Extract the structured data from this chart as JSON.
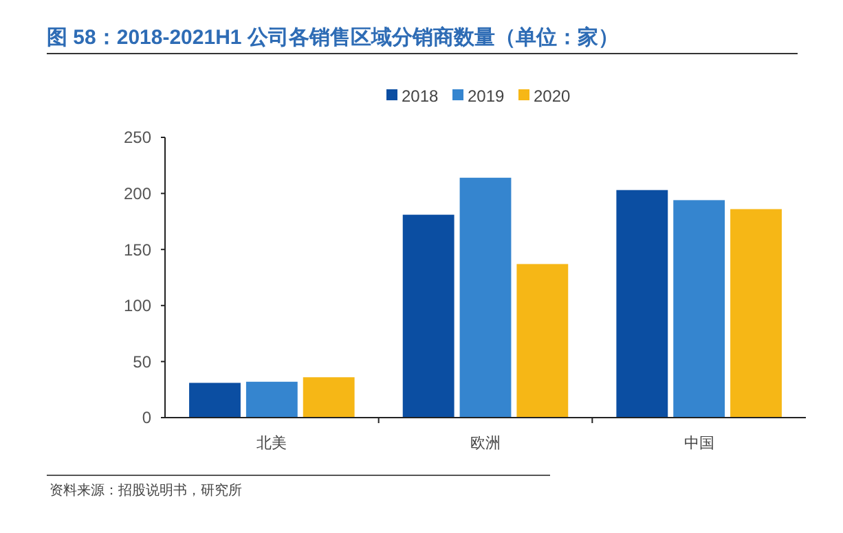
{
  "chart_data": {
    "type": "bar",
    "title": "图 58：2018-2021H1 公司各销售区域分销商数量（单位：家）",
    "categories": [
      "北美",
      "欧洲",
      "中国"
    ],
    "series": [
      {
        "name": "2018",
        "color": "#0b4ea2",
        "values": [
          31,
          181,
          203
        ]
      },
      {
        "name": "2019",
        "color": "#3585cf",
        "values": [
          32,
          214,
          194
        ]
      },
      {
        "name": "2020",
        "color": "#f6b716",
        "values": [
          36,
          137,
          186
        ]
      }
    ],
    "ylim": [
      0,
      250
    ],
    "yticks": [
      0,
      50,
      100,
      150,
      200,
      250
    ],
    "grid": false,
    "legend": "top",
    "annotations": [
      "资料来源：招股说明书，研究所"
    ]
  }
}
